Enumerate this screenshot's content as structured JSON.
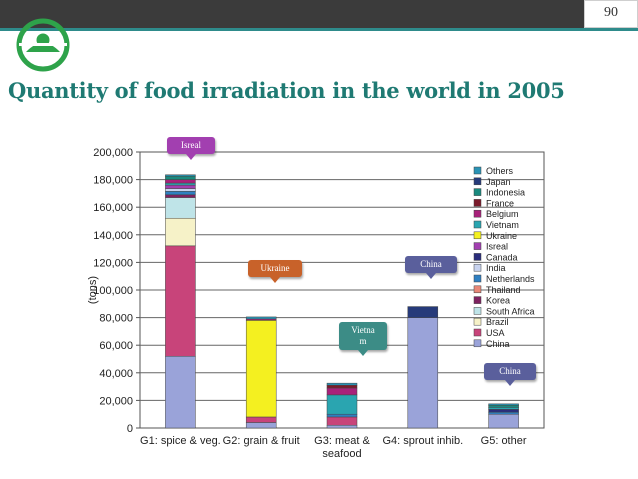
{
  "page": {
    "number": "90",
    "title": "Quantity of food irradiation in the world in 2005"
  },
  "colors": {
    "topbar": "#3b3b3b",
    "accent": "#2e8b8b",
    "title": "#1f7a73"
  },
  "callouts": [
    {
      "label": "Isreal",
      "color": "#a23fb0"
    },
    {
      "label": "Ukraine",
      "color": "#c8622a"
    },
    {
      "label": "Vietna\nm",
      "color": "#3c8c86"
    },
    {
      "label": "China",
      "color": "#5a5f9c"
    },
    {
      "label": "China",
      "color": "#5a5f9c"
    }
  ],
  "chart_data": {
    "type": "bar",
    "stacked": true,
    "ylabel": "(tons)",
    "ylim": [
      0,
      200000
    ],
    "yticks": [
      "0",
      "20,000",
      "40,000",
      "60,000",
      "80,000",
      "100,000",
      "120,000",
      "140,000",
      "160,000",
      "180,000",
      "200,000"
    ],
    "categories": [
      "G1: spice & veg.",
      "G2: grain & fruit",
      "G3: meat &\nseafood",
      "G4: sprout inhib.",
      "G5: other"
    ],
    "legend_position": "right",
    "grid": true,
    "series": [
      {
        "name": "China",
        "color": "#9aa3d9",
        "values": [
          52000,
          4000,
          2000,
          80000,
          10000
        ]
      },
      {
        "name": "USA",
        "color": "#c8447a",
        "values": [
          80000,
          4000,
          6000,
          0,
          0
        ]
      },
      {
        "name": "Brazil",
        "color": "#f6f2c8",
        "values": [
          20000,
          0,
          0,
          0,
          0
        ]
      },
      {
        "name": "South Africa",
        "color": "#bfe4e8",
        "values": [
          15000,
          0,
          0,
          0,
          0
        ]
      },
      {
        "name": "Korea",
        "color": "#7e2260",
        "values": [
          2000,
          0,
          0,
          0,
          0
        ]
      },
      {
        "name": "Thailand",
        "color": "#e88878",
        "values": [
          0,
          0,
          0,
          0,
          0
        ]
      },
      {
        "name": "Netherlands",
        "color": "#2f7fc1",
        "values": [
          2500,
          0,
          2000,
          0,
          1500
        ]
      },
      {
        "name": "India",
        "color": "#c8d3ef",
        "values": [
          2000,
          0,
          0,
          0,
          0
        ]
      },
      {
        "name": "Canada",
        "color": "#2a2d7c",
        "values": [
          0,
          0,
          0,
          0,
          2000
        ]
      },
      {
        "name": "Isreal",
        "color": "#a23fb0",
        "values": [
          2500,
          0,
          0,
          0,
          0
        ]
      },
      {
        "name": "Ukraine",
        "color": "#f4f020",
        "values": [
          0,
          70000,
          0,
          0,
          0
        ]
      },
      {
        "name": "Vietnam",
        "color": "#2aa5b0",
        "values": [
          1500,
          0,
          14000,
          0,
          1500
        ]
      },
      {
        "name": "Belgium",
        "color": "#a8217a",
        "values": [
          2500,
          1000,
          5000,
          0,
          0
        ]
      },
      {
        "name": "France",
        "color": "#7a1a2a",
        "values": [
          0,
          0,
          2000,
          0,
          0
        ]
      },
      {
        "name": "Indonesia",
        "color": "#1a8a7e",
        "values": [
          2500,
          0,
          0,
          0,
          1500
        ]
      },
      {
        "name": "Japan",
        "color": "#263a7a",
        "values": [
          0,
          0,
          0,
          8000,
          0
        ]
      },
      {
        "name": "Others",
        "color": "#2a93b5",
        "values": [
          1000,
          1500,
          1500,
          0,
          1000
        ]
      }
    ]
  }
}
